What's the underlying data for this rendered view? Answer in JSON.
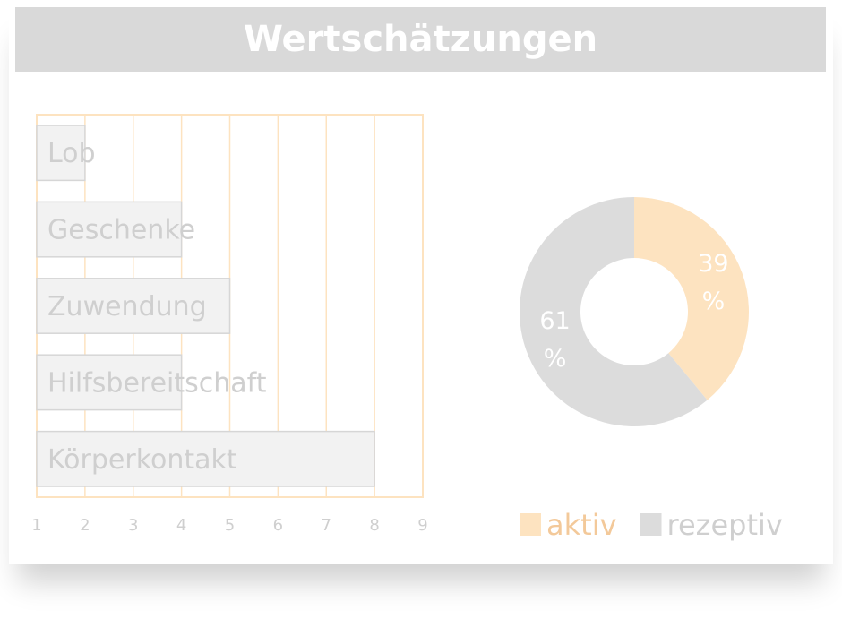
{
  "title": "Wertschätzungen",
  "chart_data": [
    {
      "type": "bar",
      "orientation": "horizontal",
      "categories": [
        "Lob",
        "Geschenke",
        "Zuwendung",
        "Hilfsbereitschaft",
        "Körperkontakt"
      ],
      "values": [
        2,
        4,
        5,
        4,
        8
      ],
      "color": "#f2f2f2",
      "xlim": [
        1,
        9
      ],
      "xticks": [
        1,
        2,
        3,
        4,
        5,
        6,
        7,
        8,
        9
      ],
      "grid": true
    },
    {
      "type": "pie",
      "donut": true,
      "categories": [
        "aktiv",
        "rezeptiv"
      ],
      "values": [
        39,
        61
      ],
      "value_labels": [
        "39 %",
        "61 %"
      ],
      "colors": [
        "#fde3c0",
        "#dcdcdc"
      ],
      "legend": "bottom"
    }
  ]
}
